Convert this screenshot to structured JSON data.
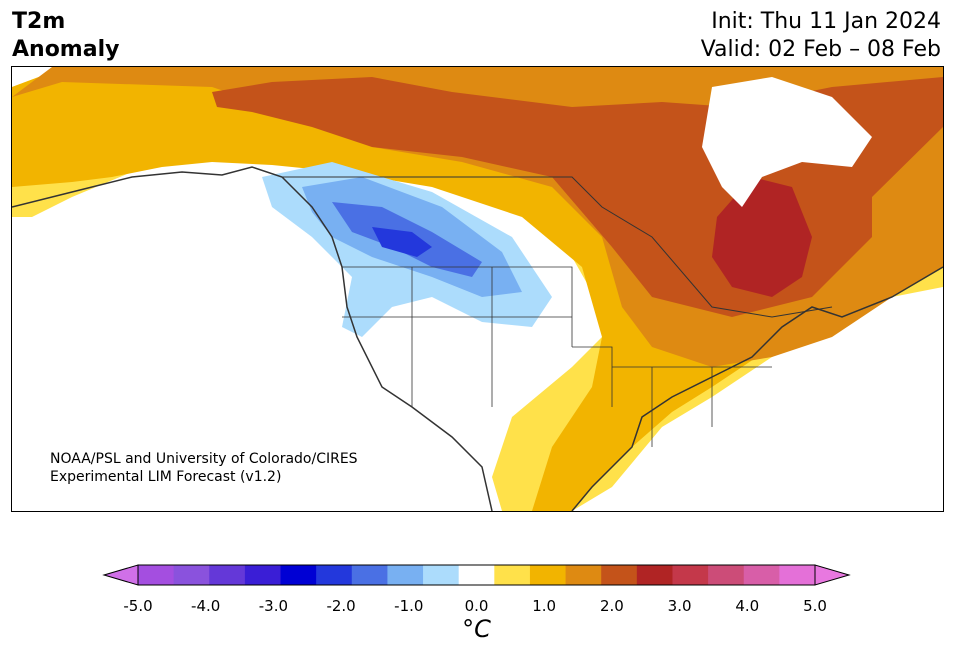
{
  "title": {
    "line1": "T2m",
    "line2": "Anomaly"
  },
  "forecast": {
    "init": "Init: Thu 11 Jan 2024",
    "valid": "Valid: 02 Feb – 08 Feb"
  },
  "credit": {
    "line1": "NOAA/PSL and University of Colorado/CIRES",
    "line2": "Experimental LIM Forecast (v1.2)"
  },
  "colorbar": {
    "unit": "°C",
    "ticks": [
      "-5.0",
      "-4.0",
      "-3.0",
      "-2.0",
      "-1.0",
      "0.0",
      "1.0",
      "2.0",
      "3.0",
      "4.0",
      "5.0"
    ],
    "bins": [
      {
        "range": "-5.0..-4.5",
        "color": "#a44ee0"
      },
      {
        "range": "-4.5..-4.0",
        "color": "#8a52dd"
      },
      {
        "range": "-4.0..-3.5",
        "color": "#6438d8"
      },
      {
        "range": "-3.5..-3.0",
        "color": "#3a1ed6"
      },
      {
        "range": "-3.0..-2.5",
        "color": "#0000d4"
      },
      {
        "range": "-2.5..-2.0",
        "color": "#2338dc"
      },
      {
        "range": "-2.0..-1.5",
        "color": "#4a70e4"
      },
      {
        "range": "-1.5..-1.0",
        "color": "#78b0f2"
      },
      {
        "range": "-1.0..-0.5",
        "color": "#acdcfc"
      },
      {
        "range": "-0.5..0.5",
        "color": "#ffffff"
      },
      {
        "range": "0.5..1.0",
        "color": "#ffe14a"
      },
      {
        "range": "1.0..1.5",
        "color": "#f2b400"
      },
      {
        "range": "1.5..2.0",
        "color": "#de8a12"
      },
      {
        "range": "2.0..2.5",
        "color": "#c4531a"
      },
      {
        "range": "2.5..3.0",
        "color": "#b02424"
      },
      {
        "range": "3.0..3.5",
        "color": "#c4384a"
      },
      {
        "range": "3.5..4.0",
        "color": "#cc4c78"
      },
      {
        "range": "4.0..4.5",
        "color": "#d85ea8"
      },
      {
        "range": "4.5..5.0",
        "color": "#e470d8"
      }
    ],
    "extend_low_color": "#d070e8",
    "extend_high_color": "#e878e0"
  }
}
